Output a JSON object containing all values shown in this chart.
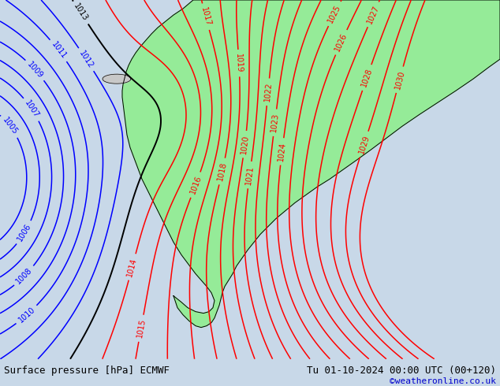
{
  "title_left": "Surface pressure [hPa] ECMWF",
  "title_right": "Tu 01-10-2024 00:00 UTC (00+120)",
  "credit": "©weatheronline.co.uk",
  "bg_color": "#c8d8e8",
  "ocean_color": "#c8d8e8",
  "land_gray_color": "#c8c8c8",
  "highlight_color": "#90ee90",
  "figsize": [
    6.34,
    4.9
  ],
  "dpi": 100,
  "blue_contour_color": "#0000ff",
  "red_contour_color": "#ff0000",
  "black_contour_color": "#000000",
  "credit_color": "#0000cc",
  "title_fontsize": 9,
  "label_fontsize": 7,
  "levels_blue": [
    1005,
    1006,
    1007,
    1008,
    1009,
    1010,
    1011,
    1012
  ],
  "levels_black": [
    1013
  ],
  "levels_red": [
    1014,
    1015,
    1016,
    1017,
    1018,
    1019,
    1020,
    1021,
    1022,
    1023,
    1024,
    1025,
    1026,
    1027,
    1028,
    1029,
    1030
  ]
}
